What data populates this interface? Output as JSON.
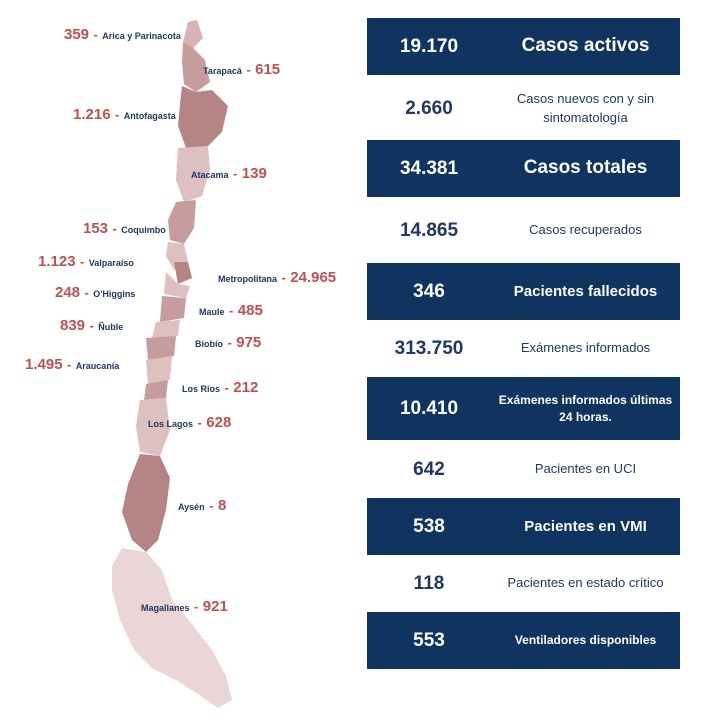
{
  "regions": [
    {
      "value": "359",
      "name": "Arica y Parinacota"
    },
    {
      "value": "615",
      "name": "Tarapacá"
    },
    {
      "value": "1.216",
      "name": "Antofagasta"
    },
    {
      "value": "139",
      "name": "Atacama"
    },
    {
      "value": "153",
      "name": "Coquimbo"
    },
    {
      "value": "1.123",
      "name": "Valparaíso"
    },
    {
      "value": "24.965",
      "name": "Metropolitana"
    },
    {
      "value": "248",
      "name": "O'Higgins"
    },
    {
      "value": "485",
      "name": "Maule"
    },
    {
      "value": "839",
      "name": "Ñuble"
    },
    {
      "value": "975",
      "name": "Biobío"
    },
    {
      "value": "1.495",
      "name": "Araucanía"
    },
    {
      "value": "212",
      "name": "Los Ríos"
    },
    {
      "value": "628",
      "name": "Los Lagos"
    },
    {
      "value": "8",
      "name": "Aysén"
    },
    {
      "value": "921",
      "name": "Magallanes"
    }
  ],
  "dash": "-",
  "stats": [
    {
      "value": "19.170",
      "label": "Casos activos",
      "style": "dark"
    },
    {
      "value": "2.660",
      "label": "Casos nuevos con y sin sintomatología",
      "style": "light"
    },
    {
      "value": "34.381",
      "label": "Casos totales",
      "style": "dark"
    },
    {
      "value": "14.865",
      "label": "Casos recuperados",
      "style": "light"
    },
    {
      "value": "346",
      "label": "Pacientes fallecidos",
      "style": "dark"
    },
    {
      "value": "313.750",
      "label": "Exámenes informados",
      "style": "light"
    },
    {
      "value": "10.410",
      "label": "Exámenes informados últimas 24 horas.",
      "style": "dark"
    },
    {
      "value": "642",
      "label": "Pacientes en UCI",
      "style": "light"
    },
    {
      "value": "538",
      "label": "Pacientes en VMI",
      "style": "dark"
    },
    {
      "value": "118",
      "label": "Pacientes en estado crítico",
      "style": "light"
    },
    {
      "value": "553",
      "label": "Ventiladores disponibles",
      "style": "dark"
    }
  ],
  "colors": {
    "dark_box": "#0f3460",
    "value_red": "#c0504d",
    "label_navy": "#1f3864",
    "map_dark": "#b58585",
    "map_light": "#e2c8c8"
  }
}
